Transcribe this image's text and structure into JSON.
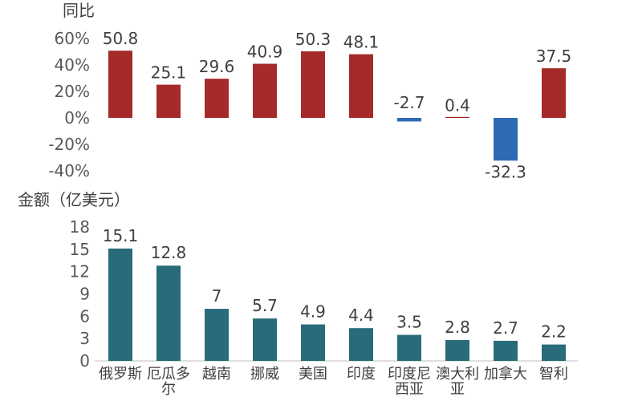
{
  "chart_data": [
    {
      "type": "bar",
      "ylabel": "同比",
      "ylim": [
        -40,
        60
      ],
      "yticks": [
        "60%",
        "40%",
        "20%",
        "0%",
        "-20%",
        "-40%"
      ],
      "categories": [
        "俄罗斯",
        "厄瓜多尔",
        "越南",
        "挪威",
        "美国",
        "印度",
        "印度尼西亚",
        "澳大利亚",
        "加拿大",
        "智利"
      ],
      "values": [
        50.8,
        25.1,
        29.6,
        40.9,
        50.3,
        48.1,
        -2.7,
        0.4,
        -32.3,
        37.5
      ],
      "value_labels": [
        "50.8",
        "25.1",
        "29.6",
        "40.9",
        "50.3",
        "48.1",
        "-2.7",
        "0.4",
        "-32.3",
        "37.5"
      ],
      "colors": {
        "positive": "#a52a2a",
        "negative": "#2e6bb5"
      }
    },
    {
      "type": "bar",
      "ylabel": "金额（亿美元）",
      "ylim": [
        0,
        18
      ],
      "yticks": [
        "18",
        "15",
        "12",
        "9",
        "6",
        "3",
        "0"
      ],
      "categories": [
        "俄罗斯",
        "厄瓜多尔",
        "越南",
        "挪威",
        "美国",
        "印度",
        "印度尼西亚",
        "澳大利亚",
        "加拿大",
        "智利"
      ],
      "category_labels": [
        [
          "俄罗斯"
        ],
        [
          "厄瓜多",
          "尔"
        ],
        [
          "越南"
        ],
        [
          "挪威"
        ],
        [
          "美国"
        ],
        [
          "印度"
        ],
        [
          "印度尼",
          "西亚"
        ],
        [
          "澳大利",
          "亚"
        ],
        [
          "加拿大"
        ],
        [
          "智利"
        ]
      ],
      "values": [
        15.1,
        12.8,
        7,
        5.7,
        4.9,
        4.4,
        3.5,
        2.8,
        2.7,
        2.2
      ],
      "value_labels": [
        "15.1",
        "12.8",
        "7",
        "5.7",
        "4.9",
        "4.4",
        "3.5",
        "2.8",
        "2.7",
        "2.2"
      ],
      "colors": {
        "bar": "#286b7a"
      }
    }
  ]
}
